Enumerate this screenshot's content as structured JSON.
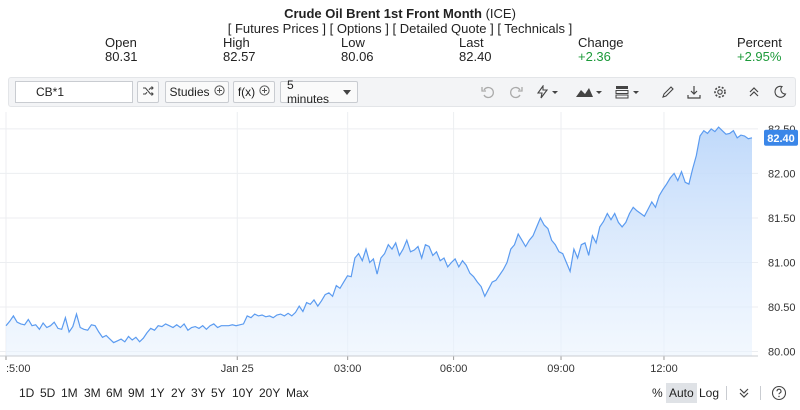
{
  "header": {
    "title": "Crude Oil Brent 1st Front Month",
    "exchange": "(ICE)",
    "links": [
      "[ Futures Prices ]",
      "[ Options ]",
      "[ Detailed Quote ]",
      "[ Technicals ]"
    ]
  },
  "stats": [
    {
      "label": "Open",
      "value": "80.31"
    },
    {
      "label": "High",
      "value": "82.57"
    },
    {
      "label": "Low",
      "value": "80.06"
    },
    {
      "label": "Last",
      "value": "82.40"
    },
    {
      "label": "Change",
      "value": "+2.36"
    },
    {
      "label": "Percent",
      "value": "+2.95%"
    }
  ],
  "toolbar": {
    "symbol_value": "CB*1",
    "studies_label": "Studies",
    "fx_label": "f(x)",
    "interval_label": "5 minutes",
    "icons": [
      "search-icon",
      "shuffle-icon",
      "plus-circle-icon",
      "chevron-down-icon",
      "undo-icon",
      "redo-icon",
      "lightning-icon",
      "mountain-chart-icon",
      "template-icon",
      "pencil-icon",
      "download-icon",
      "gear-icon",
      "chevrons-up-icon",
      "moon-icon"
    ]
  },
  "chart_data": {
    "type": "area",
    "x_ticks": [
      ":5:00",
      "Jan 25",
      "03:00",
      "06:00",
      "09:00",
      "12:00"
    ],
    "y_ticks": [
      "80.00",
      "80.50",
      "81.00",
      "81.50",
      "82.00",
      "82.50"
    ],
    "ylim": [
      79.95,
      82.6
    ],
    "last_price_label": "82.40",
    "grid": true,
    "color": "#5b9bf0",
    "values": [
      80.29,
      80.34,
      80.4,
      80.33,
      80.31,
      80.3,
      80.36,
      80.29,
      80.3,
      80.25,
      80.32,
      80.27,
      80.29,
      80.33,
      80.26,
      80.25,
      80.38,
      80.22,
      80.28,
      80.42,
      80.27,
      80.25,
      80.24,
      80.3,
      80.29,
      80.22,
      80.16,
      80.18,
      80.14,
      80.1,
      80.12,
      80.14,
      80.11,
      80.17,
      80.13,
      80.16,
      80.11,
      80.15,
      80.21,
      80.26,
      80.24,
      80.29,
      80.28,
      80.31,
      80.29,
      80.27,
      80.3,
      80.27,
      80.31,
      80.24,
      80.27,
      80.28,
      80.26,
      80.29,
      80.25,
      80.29,
      80.31,
      80.27,
      80.29,
      80.29,
      80.29,
      80.3,
      80.29,
      80.3,
      80.31,
      80.4,
      80.38,
      80.42,
      80.4,
      80.41,
      80.39,
      80.4,
      80.38,
      80.41,
      80.42,
      80.4,
      80.43,
      80.4,
      80.44,
      80.51,
      80.45,
      80.55,
      80.53,
      80.58,
      80.51,
      80.57,
      80.64,
      80.66,
      80.62,
      80.74,
      80.71,
      80.78,
      80.85,
      80.84,
      81.05,
      81.1,
      81.02,
      81.15,
      81.0,
      81.04,
      80.87,
      81.05,
      81.1,
      81.2,
      81.15,
      81.22,
      81.08,
      81.15,
      81.25,
      81.12,
      81.14,
      81.18,
      81.05,
      81.2,
      81.18,
      81.08,
      81.12,
      81.02,
      81.05,
      80.95,
      81.0,
      81.04,
      80.95,
      81.02,
      80.97,
      80.88,
      80.84,
      80.78,
      80.73,
      80.62,
      80.7,
      80.78,
      80.8,
      80.86,
      80.92,
      81.0,
      81.15,
      81.2,
      81.32,
      81.25,
      81.18,
      81.25,
      81.3,
      81.4,
      81.5,
      81.42,
      81.38,
      81.25,
      81.2,
      81.12,
      81.1,
      81.0,
      80.9,
      81.15,
      81.05,
      81.2,
      81.22,
      81.08,
      81.3,
      81.22,
      81.4,
      81.46,
      81.55,
      81.48,
      81.55,
      81.45,
      81.4,
      81.45,
      81.55,
      81.62,
      81.58,
      81.55,
      81.52,
      81.6,
      81.68,
      81.62,
      81.75,
      81.82,
      81.88,
      81.95,
      82.0,
      81.92,
      82.02,
      81.9,
      81.88,
      82.05,
      82.2,
      82.42,
      82.48,
      82.45,
      82.5,
      82.47,
      82.52,
      82.48,
      82.44,
      82.45,
      82.48,
      82.4,
      82.43,
      82.42,
      82.39,
      82.4
    ]
  },
  "footer": {
    "ranges": [
      "1D",
      "5D",
      "1M",
      "3M",
      "6M",
      "9M",
      "1Y",
      "2Y",
      "3Y",
      "5Y",
      "10Y",
      "20Y",
      "Max"
    ],
    "scale_percent": "%",
    "scale_auto": "Auto",
    "scale_log": "Log",
    "icons": [
      "double-chevron-down-icon",
      "help-icon"
    ]
  }
}
